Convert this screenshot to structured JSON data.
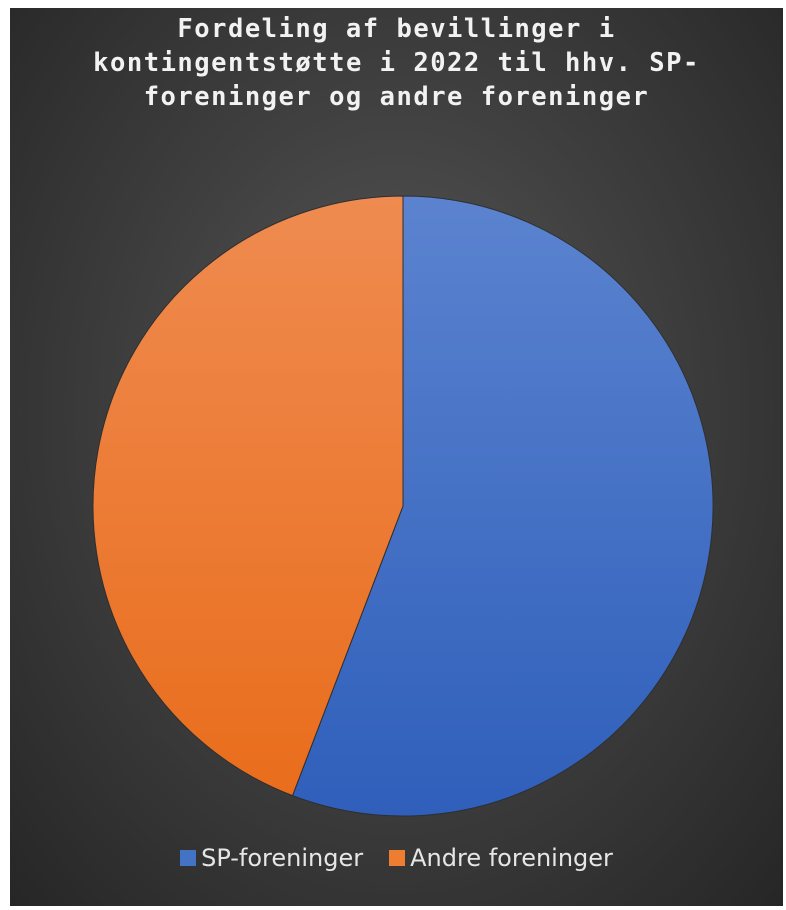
{
  "chart_data": {
    "type": "pie",
    "title": "Fordeling af bevillinger i kontingentstøtte i 2022 til hhv. SP-foreninger og andre foreninger",
    "categories": [
      "SP-foreninger",
      "Andre foreninger"
    ],
    "values": [
      55.8,
      44.2
    ],
    "colors": [
      "#4472C4",
      "#ED7D31"
    ],
    "legend_position": "bottom",
    "data_labels": false
  }
}
